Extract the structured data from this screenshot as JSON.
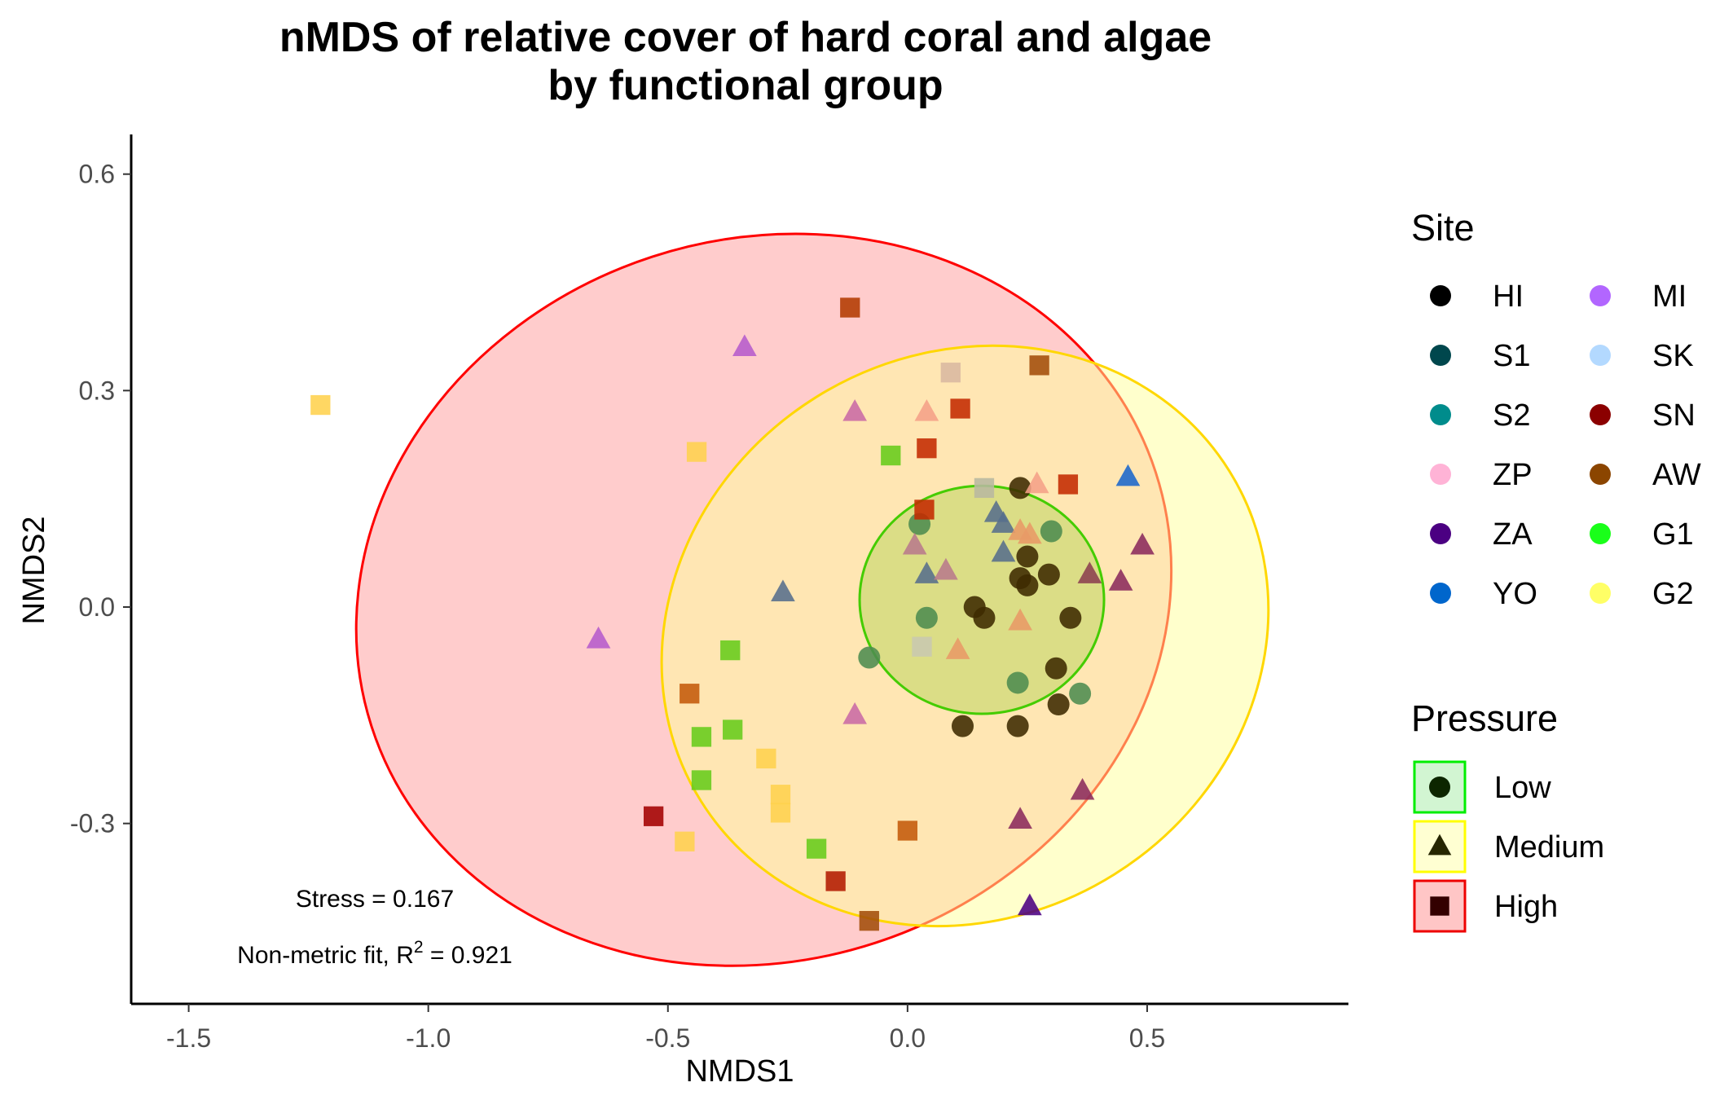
{
  "chart_data": {
    "type": "scatter",
    "title_line1": "nMDS of relative cover of hard coral and algae",
    "title_line2": "by functional group",
    "xlabel": "NMDS1",
    "ylabel": "NMDS2",
    "xlim": [
      -1.62,
      0.92
    ],
    "ylim": [
      -0.55,
      0.655
    ],
    "xticks": [
      -1.5,
      -1.0,
      -0.5,
      0.0,
      0.5
    ],
    "xtick_labels": [
      "-1.5",
      "-1.0",
      "-0.5",
      "0.0",
      "0.5"
    ],
    "yticks": [
      -0.3,
      0.0,
      0.3,
      0.6
    ],
    "ytick_labels": [
      "-0.3",
      "0.0",
      "0.3",
      "0.6"
    ],
    "grid": false,
    "annotations": {
      "stress": "Stress = 0.167",
      "fit_prefix": "Non-metric fit, R",
      "fit_sup": "2",
      "fit_suffix": " = 0.921"
    },
    "legend_site": {
      "title": "Site",
      "placement": "right",
      "entries": [
        {
          "label": "HI",
          "color": "#000000"
        },
        {
          "label": "S1",
          "color": "#00474d"
        },
        {
          "label": "S2",
          "color": "#008c8c"
        },
        {
          "label": "ZP",
          "color": "#ffb3d6"
        },
        {
          "label": "ZA",
          "color": "#4b0082"
        },
        {
          "label": "YO",
          "color": "#0066cc"
        },
        {
          "label": "MI",
          "color": "#b266ff"
        },
        {
          "label": "SK",
          "color": "#b3d9ff"
        },
        {
          "label": "SN",
          "color": "#8b0000"
        },
        {
          "label": "AW",
          "color": "#8b4500"
        },
        {
          "label": "G1",
          "color": "#1aff1a"
        },
        {
          "label": "G2",
          "color": "#ffff66"
        }
      ]
    },
    "legend_pressure": {
      "title": "Pressure",
      "entries": [
        {
          "label": "Low",
          "shape": "circle",
          "fill": "#d2f5d2",
          "stroke": "#00ee00"
        },
        {
          "label": "Medium",
          "shape": "triangle",
          "fill": "#ffffd2",
          "stroke": "#ffff00"
        },
        {
          "label": "High",
          "shape": "square",
          "fill": "#ffc6c6",
          "stroke": "#ee0000"
        }
      ]
    },
    "ellipses": [
      {
        "group": "High",
        "fill": "#ff9999",
        "fill_opacity": 0.5,
        "stroke": "#ff0000",
        "cx": -0.3,
        "cy": 0.01,
        "rx": 0.86,
        "ry": 0.5,
        "angle_deg": -18
      },
      {
        "group": "Medium",
        "fill": "#ffff99",
        "fill_opacity": 0.5,
        "stroke": "#ffd700",
        "cx": 0.12,
        "cy": -0.04,
        "rx": 0.65,
        "ry": 0.39,
        "angle_deg": -32
      },
      {
        "group": "Low",
        "fill": "#99cc33",
        "fill_opacity": 0.35,
        "stroke": "#44cc00",
        "cx": 0.155,
        "cy": 0.01,
        "rx": 0.255,
        "ry": 0.158,
        "angle_deg": 0
      }
    ],
    "series": [
      {
        "name": "Low",
        "shape": "circle",
        "points": [
          {
            "x": 0.235,
            "y": 0.165,
            "color": "#3d2a00"
          },
          {
            "x": 0.25,
            "y": 0.07,
            "color": "#3d2a00"
          },
          {
            "x": 0.235,
            "y": 0.04,
            "color": "#3d2a00"
          },
          {
            "x": 0.25,
            "y": 0.03,
            "color": "#3d2a00"
          },
          {
            "x": 0.295,
            "y": 0.045,
            "color": "#3d2a00"
          },
          {
            "x": 0.14,
            "y": 0.0,
            "color": "#3d2a00"
          },
          {
            "x": 0.16,
            "y": -0.015,
            "color": "#3d2a00"
          },
          {
            "x": 0.34,
            "y": -0.015,
            "color": "#3d2a00"
          },
          {
            "x": 0.31,
            "y": -0.085,
            "color": "#3d2a00"
          },
          {
            "x": 0.315,
            "y": -0.135,
            "color": "#3d2a00"
          },
          {
            "x": 0.115,
            "y": -0.165,
            "color": "#3d2a00"
          },
          {
            "x": 0.23,
            "y": -0.165,
            "color": "#3d2a00"
          },
          {
            "x": 0.025,
            "y": 0.115,
            "color": "#4d8c50"
          },
          {
            "x": 0.3,
            "y": 0.105,
            "color": "#4d8c50"
          },
          {
            "x": 0.04,
            "y": -0.015,
            "color": "#4d8c50"
          },
          {
            "x": -0.08,
            "y": -0.07,
            "color": "#4d8c50"
          },
          {
            "x": 0.23,
            "y": -0.105,
            "color": "#4d8c50"
          },
          {
            "x": 0.36,
            "y": -0.12,
            "color": "#4d8c50"
          }
        ]
      },
      {
        "name": "Medium",
        "shape": "triangle",
        "points": [
          {
            "x": -0.34,
            "y": 0.36,
            "color": "#b65bcc"
          },
          {
            "x": -0.645,
            "y": -0.045,
            "color": "#b65bcc"
          },
          {
            "x": -0.11,
            "y": 0.27,
            "color": "#c96aa5"
          },
          {
            "x": 0.04,
            "y": 0.27,
            "color": "#f5a088"
          },
          {
            "x": 0.27,
            "y": 0.17,
            "color": "#f5a088"
          },
          {
            "x": -0.26,
            "y": 0.02,
            "color": "#566e8c"
          },
          {
            "x": 0.185,
            "y": 0.13,
            "color": "#566e8c"
          },
          {
            "x": 0.2,
            "y": 0.115,
            "color": "#566e8c"
          },
          {
            "x": 0.2,
            "y": 0.075,
            "color": "#566e8c"
          },
          {
            "x": 0.04,
            "y": 0.045,
            "color": "#566e8c"
          },
          {
            "x": 0.235,
            "y": 0.105,
            "color": "#e89a66"
          },
          {
            "x": 0.255,
            "y": 0.1,
            "color": "#e89a66"
          },
          {
            "x": 0.235,
            "y": -0.02,
            "color": "#e89a66"
          },
          {
            "x": 0.105,
            "y": -0.06,
            "color": "#e89a66"
          },
          {
            "x": 0.08,
            "y": 0.05,
            "color": "#b87a8c"
          },
          {
            "x": 0.015,
            "y": 0.085,
            "color": "#b87a8c"
          },
          {
            "x": -0.11,
            "y": -0.15,
            "color": "#c96aa5"
          },
          {
            "x": 0.49,
            "y": 0.085,
            "color": "#8b2a5c"
          },
          {
            "x": 0.38,
            "y": 0.045,
            "color": "#8b4050"
          },
          {
            "x": 0.445,
            "y": 0.035,
            "color": "#8b2a5c"
          },
          {
            "x": 0.46,
            "y": 0.18,
            "color": "#1a66cc"
          },
          {
            "x": 0.365,
            "y": -0.255,
            "color": "#8b2a5c"
          },
          {
            "x": 0.235,
            "y": -0.295,
            "color": "#8b2a5c"
          },
          {
            "x": 0.255,
            "y": -0.415,
            "color": "#4b0082"
          }
        ]
      },
      {
        "name": "High",
        "shape": "square",
        "points": [
          {
            "x": -1.225,
            "y": 0.28,
            "color": "#ffd24d"
          },
          {
            "x": -0.44,
            "y": 0.215,
            "color": "#ffd24d"
          },
          {
            "x": -0.295,
            "y": -0.21,
            "color": "#ffd24d"
          },
          {
            "x": -0.265,
            "y": -0.26,
            "color": "#ffd24d"
          },
          {
            "x": -0.265,
            "y": -0.285,
            "color": "#ffd24d"
          },
          {
            "x": -0.465,
            "y": -0.325,
            "color": "#ffd24d"
          },
          {
            "x": -0.12,
            "y": 0.415,
            "color": "#b33a00"
          },
          {
            "x": 0.275,
            "y": 0.335,
            "color": "#a34d0a"
          },
          {
            "x": 0.11,
            "y": 0.275,
            "color": "#c42a00"
          },
          {
            "x": 0.04,
            "y": 0.22,
            "color": "#c42a00"
          },
          {
            "x": 0.335,
            "y": 0.17,
            "color": "#c42a00"
          },
          {
            "x": 0.035,
            "y": 0.135,
            "color": "#c42a00"
          },
          {
            "x": -0.455,
            "y": -0.12,
            "color": "#c45a0a"
          },
          {
            "x": 0.0,
            "y": -0.31,
            "color": "#c45a0a"
          },
          {
            "x": -0.08,
            "y": -0.435,
            "color": "#a34d0a"
          },
          {
            "x": -0.53,
            "y": -0.29,
            "color": "#a30000"
          },
          {
            "x": -0.15,
            "y": -0.38,
            "color": "#b31a00"
          },
          {
            "x": 0.09,
            "y": 0.325,
            "color": "#d9b8a0"
          },
          {
            "x": 0.16,
            "y": 0.165,
            "color": "#b8b8a0"
          },
          {
            "x": 0.03,
            "y": -0.055,
            "color": "#c8c8b0"
          },
          {
            "x": -0.035,
            "y": 0.21,
            "color": "#66cc1a"
          },
          {
            "x": -0.37,
            "y": -0.06,
            "color": "#66cc1a"
          },
          {
            "x": -0.43,
            "y": -0.18,
            "color": "#66cc1a"
          },
          {
            "x": -0.365,
            "y": -0.17,
            "color": "#66cc1a"
          },
          {
            "x": -0.43,
            "y": -0.24,
            "color": "#66cc1a"
          },
          {
            "x": -0.19,
            "y": -0.335,
            "color": "#66cc1a"
          }
        ]
      }
    ]
  }
}
